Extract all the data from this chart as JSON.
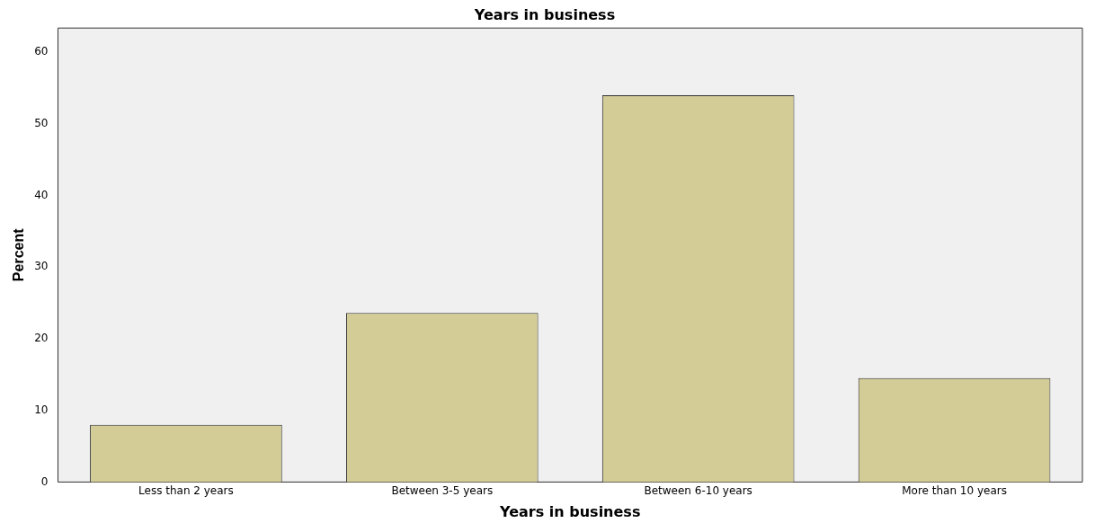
{
  "chart_data": {
    "type": "bar",
    "title": "Years in business",
    "xlabel": "Years in business",
    "ylabel": "Percent",
    "categories": [
      "Less than 2 years",
      "Between 3-5 years",
      "Between 6-10 years",
      "More than 10 years"
    ],
    "values": [
      8.0,
      23.6,
      54.0,
      14.5
    ],
    "color": "#d3cc96",
    "ylim": [
      0,
      63.4
    ],
    "yticks": [
      0,
      10,
      20,
      30,
      40,
      50,
      60
    ],
    "grid": false,
    "legend": false
  }
}
